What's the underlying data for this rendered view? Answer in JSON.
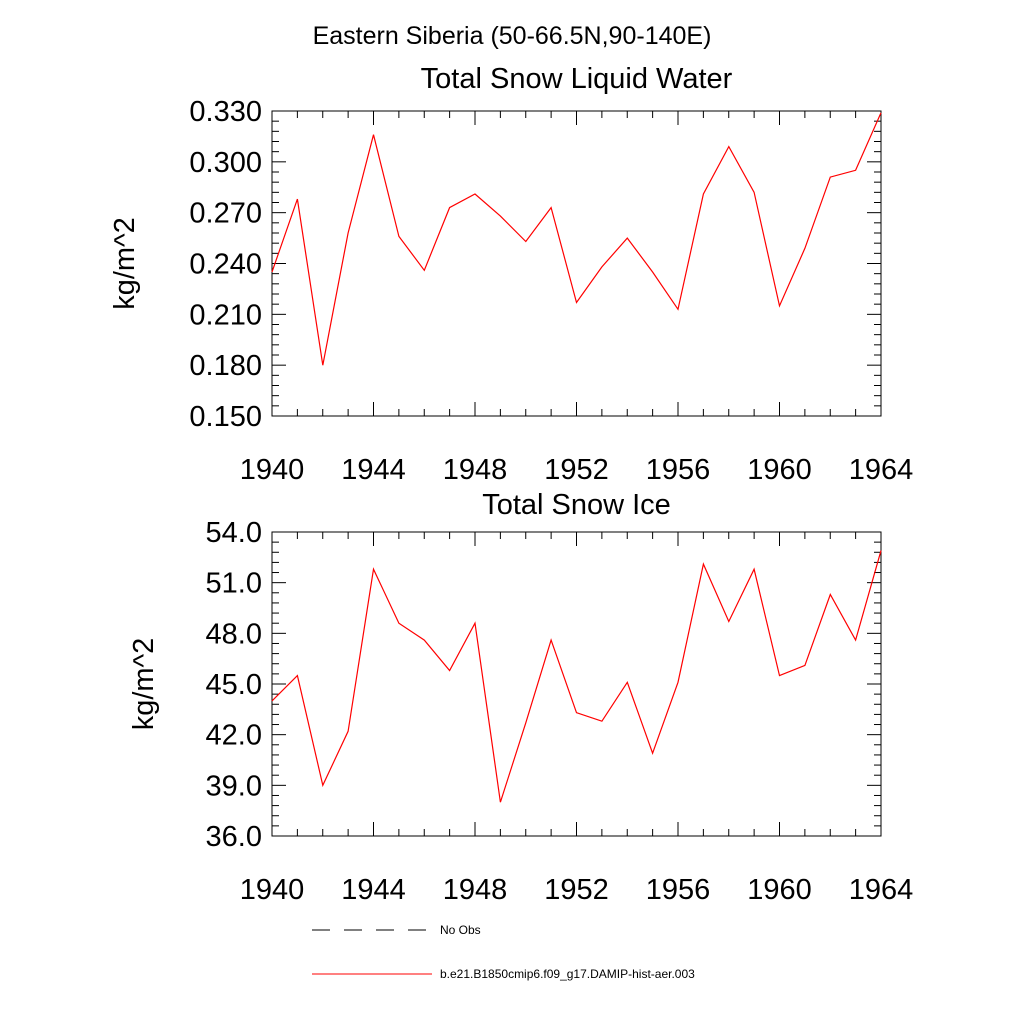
{
  "suptitle": "Eastern Siberia (50-66.5N,90-140E)",
  "colors": {
    "series": "#ff0000",
    "axis": "#000000",
    "no_obs": "#000000"
  },
  "chart_data": [
    {
      "type": "line",
      "title": "Total Snow Liquid Water",
      "xlabel": "",
      "ylabel": "kg/m^2",
      "xlim": [
        1940,
        1964
      ],
      "ylim": [
        0.15,
        0.33
      ],
      "x_ticks": [
        1940,
        1944,
        1948,
        1952,
        1956,
        1960,
        1964
      ],
      "x_tick_labels": [
        "1940",
        "1944",
        "1948",
        "1952",
        "1956",
        "1960",
        "1964"
      ],
      "y_ticks": [
        0.15,
        0.18,
        0.21,
        0.24,
        0.27,
        0.3,
        0.33
      ],
      "y_tick_labels": [
        "0.150",
        "0.180",
        "0.210",
        "0.240",
        "0.270",
        "0.300",
        "0.330"
      ],
      "x": [
        1940,
        1941,
        1942,
        1943,
        1944,
        1945,
        1946,
        1947,
        1948,
        1949,
        1950,
        1951,
        1952,
        1953,
        1954,
        1955,
        1956,
        1957,
        1958,
        1959,
        1960,
        1961,
        1962,
        1963,
        1964
      ],
      "series": [
        {
          "name": "b.e21.B1850cmip6.f09_g17.DAMIP-hist-aer.003",
          "values": [
            0.235,
            0.278,
            0.18,
            0.258,
            0.316,
            0.256,
            0.236,
            0.273,
            0.281,
            0.268,
            0.253,
            0.273,
            0.217,
            0.238,
            0.255,
            0.235,
            0.213,
            0.281,
            0.309,
            0.282,
            0.215,
            0.249,
            0.291,
            0.295,
            0.329
          ]
        }
      ]
    },
    {
      "type": "line",
      "title": "Total Snow Ice",
      "xlabel": "",
      "ylabel": "kg/m^2",
      "xlim": [
        1940,
        1964
      ],
      "ylim": [
        36.0,
        54.0
      ],
      "x_ticks": [
        1940,
        1944,
        1948,
        1952,
        1956,
        1960,
        1964
      ],
      "x_tick_labels": [
        "1940",
        "1944",
        "1948",
        "1952",
        "1956",
        "1960",
        "1964"
      ],
      "y_ticks": [
        36.0,
        39.0,
        42.0,
        45.0,
        48.0,
        51.0,
        54.0
      ],
      "y_tick_labels": [
        "36.0",
        "39.0",
        "42.0",
        "45.0",
        "48.0",
        "51.0",
        "54.0"
      ],
      "x": [
        1940,
        1941,
        1942,
        1943,
        1944,
        1945,
        1946,
        1947,
        1948,
        1949,
        1950,
        1951,
        1952,
        1953,
        1954,
        1955,
        1956,
        1957,
        1958,
        1959,
        1960,
        1961,
        1962,
        1963,
        1964
      ],
      "series": [
        {
          "name": "b.e21.B1850cmip6.f09_g17.DAMIP-hist-aer.003",
          "values": [
            44.0,
            45.5,
            39.0,
            42.2,
            51.8,
            48.6,
            47.6,
            45.8,
            48.6,
            38.0,
            42.7,
            47.6,
            43.3,
            42.8,
            45.1,
            40.9,
            45.1,
            52.1,
            48.7,
            51.8,
            45.5,
            46.1,
            50.3,
            47.6,
            52.9
          ]
        }
      ]
    }
  ],
  "legend": {
    "placement": "bottom",
    "items": [
      {
        "label": "No Obs",
        "style": "dashed",
        "color": "#000000"
      },
      {
        "label": "b.e21.B1850cmip6.f09_g17.DAMIP-hist-aer.003",
        "style": "solid",
        "color": "#ff0000"
      }
    ]
  }
}
